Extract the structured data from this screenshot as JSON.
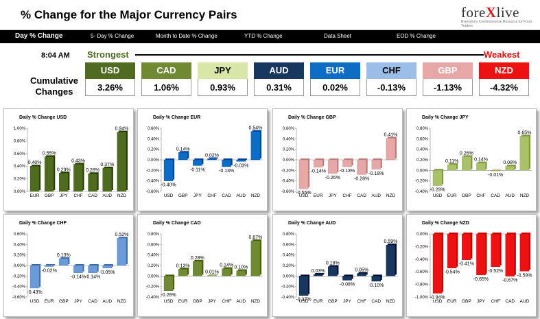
{
  "header": {
    "title": "% Change for the Major Currency Pairs",
    "logo": {
      "pre": "fore",
      "x": "X",
      "post": "live",
      "tagline": "Everyone's Commonsense Resource for Forex Traders"
    }
  },
  "nav": [
    {
      "label": "Day % Change",
      "active": true
    },
    {
      "label": "5- Day % Change",
      "active": false
    },
    {
      "label": "Month to Date % Change",
      "active": false
    },
    {
      "label": "YTD % Change",
      "active": false
    },
    {
      "label": "Data Sheet",
      "active": false
    },
    {
      "label": "EOD % Change",
      "active": false
    }
  ],
  "summary": {
    "time": "8:04 AM",
    "strongest": "Strongest",
    "weakest": "Weakest",
    "cumulative_label": "Cumulative Changes",
    "currencies": [
      {
        "code": "USD",
        "value": "3.26%",
        "color": "#4e6b1f",
        "text": "#ffffff"
      },
      {
        "code": "CAD",
        "value": "1.06%",
        "color": "#708a34",
        "text": "#ffffff"
      },
      {
        "code": "JPY",
        "value": "0.93%",
        "color": "#d8e6a8",
        "text": "#000000"
      },
      {
        "code": "AUD",
        "value": "0.31%",
        "color": "#17375e",
        "text": "#ffffff"
      },
      {
        "code": "EUR",
        "value": "0.02%",
        "color": "#0d6cc4",
        "text": "#ffffff"
      },
      {
        "code": "CHF",
        "value": "-0.13%",
        "color": "#9bbee8",
        "text": "#000000"
      },
      {
        "code": "GBP",
        "value": "-1.13%",
        "color": "#e6a7a7",
        "text": "#ffffff"
      },
      {
        "code": "NZD",
        "value": "-4.32%",
        "color": "#ee1111",
        "text": "#ffffff"
      }
    ]
  },
  "chart_data": [
    {
      "type": "bar",
      "title": "Daily % Change USD",
      "color": "#4e6b1f",
      "categories": [
        "EUR",
        "GBP",
        "JPY",
        "CHF",
        "CAD",
        "AUD",
        "NZD"
      ],
      "values": [
        0.4,
        0.55,
        0.29,
        0.43,
        0.28,
        0.37,
        0.94
      ],
      "labels": [
        "0.40%",
        "0.55%",
        "0.29%",
        "0.43%",
        "0.28%",
        "0.37%",
        "0.94%"
      ],
      "ylim": [
        0,
        1.0
      ],
      "ticks": [
        0,
        0.2,
        0.4,
        0.6,
        0.8,
        1.0
      ],
      "tick_labels": [
        "0.00%",
        "0.20%",
        "0.40%",
        "0.60%",
        "0.80%",
        "1.00%"
      ]
    },
    {
      "type": "bar",
      "title": "Daily % Change EUR",
      "color": "#0d6cc4",
      "categories": [
        "USD",
        "GBP",
        "JPY",
        "CHF",
        "CAD",
        "AUD",
        "NZD"
      ],
      "values": [
        -0.4,
        0.14,
        -0.11,
        0.02,
        -0.13,
        -0.03,
        0.54
      ],
      "labels": [
        "-0.40%",
        "0.14%",
        "-0.11%",
        "0.02%",
        "-0.13%",
        "-0.03%",
        "0.54%"
      ],
      "ylim": [
        -0.6,
        0.6
      ],
      "ticks": [
        -0.6,
        -0.4,
        -0.2,
        0,
        0.2,
        0.4,
        0.6
      ],
      "tick_labels": [
        "-0.60%",
        "-0.40%",
        "-0.20%",
        "0.00%",
        "0.20%",
        "0.40%",
        "0.60%"
      ]
    },
    {
      "type": "bar",
      "title": "Daily % Change GBP",
      "color": "#e6a7a7",
      "categories": [
        "USD",
        "EUR",
        "JPY",
        "CHF",
        "CAD",
        "AUD",
        "NZD"
      ],
      "values": [
        -0.55,
        -0.14,
        -0.26,
        -0.13,
        -0.28,
        -0.18,
        0.41
      ],
      "labels": [
        "-0.55%",
        "-0.14%",
        "-0.26%",
        "-0.13%",
        "-0.28%",
        "-0.18%",
        "0.41%"
      ],
      "ylim": [
        -0.6,
        0.6
      ],
      "ticks": [
        -0.6,
        -0.4,
        -0.2,
        0,
        0.2,
        0.4,
        0.6
      ],
      "tick_labels": [
        "-0.60%",
        "-0.40%",
        "-0.20%",
        "0.00%",
        "0.20%",
        "0.40%",
        "0.60%"
      ]
    },
    {
      "type": "bar",
      "title": "Daily % Change JPY",
      "color": "#a9c26a",
      "categories": [
        "USD",
        "EUR",
        "GBP",
        "CHF",
        "CAD",
        "AUD",
        "NZD"
      ],
      "values": [
        -0.29,
        0.11,
        0.26,
        0.14,
        -0.01,
        0.08,
        0.65
      ],
      "labels": [
        "-0.29%",
        "0.11%",
        "0.26%",
        "0.14%",
        "-0.01%",
        "0.08%",
        "0.65%"
      ],
      "ylim": [
        -0.4,
        0.8
      ],
      "ticks": [
        -0.4,
        -0.2,
        0,
        0.2,
        0.4,
        0.6,
        0.8
      ],
      "tick_labels": [
        "-0.40%",
        "-0.20%",
        "0.00%",
        "0.20%",
        "0.40%",
        "0.60%",
        "0.80%"
      ]
    },
    {
      "type": "bar",
      "title": "Daily % Change CHF",
      "color": "#6a9bd8",
      "categories": [
        "USD",
        "EUR",
        "GBP",
        "JPY",
        "CAD",
        "AUD",
        "NZD"
      ],
      "values": [
        -0.43,
        -0.02,
        0.13,
        -0.14,
        -0.14,
        -0.05,
        0.52
      ],
      "labels": [
        "-0.43%",
        "-0.02%",
        "0.13%",
        "-0.14%",
        "-0.14%",
        "-0.05%",
        "0.52%"
      ],
      "ylim": [
        -0.6,
        0.6
      ],
      "ticks": [
        -0.6,
        -0.4,
        -0.2,
        0,
        0.2,
        0.4,
        0.6
      ],
      "tick_labels": [
        "-0.60%",
        "-0.40%",
        "-0.20%",
        "0.00%",
        "0.20%",
        "0.40%",
        "0.60%"
      ]
    },
    {
      "type": "bar",
      "title": "Daily % Change CAD",
      "color": "#708a34",
      "categories": [
        "USD",
        "EUR",
        "GBP",
        "JPY",
        "CHF",
        "AUD",
        "NZD"
      ],
      "values": [
        -0.28,
        0.13,
        0.28,
        0.01,
        0.14,
        0.1,
        0.67
      ],
      "labels": [
        "-0.28%",
        "0.13%",
        "0.28%",
        "0.01%",
        "0.14%",
        "0.10%",
        "0.67%"
      ],
      "ylim": [
        -0.4,
        0.8
      ],
      "ticks": [
        -0.4,
        -0.2,
        0,
        0.2,
        0.4,
        0.6,
        0.8
      ],
      "tick_labels": [
        "-0.40%",
        "-0.20%",
        "0.00%",
        "0.20%",
        "0.40%",
        "0.60%",
        "0.80%"
      ]
    },
    {
      "type": "bar",
      "title": "Daily % Change AUD",
      "color": "#17375e",
      "categories": [
        "USD",
        "EUR",
        "GBP",
        "JPY",
        "CHF",
        "CAD",
        "NZD"
      ],
      "values": [
        -0.37,
        0.03,
        0.18,
        -0.08,
        0.05,
        -0.1,
        0.59
      ],
      "labels": [
        "-0.37%",
        "0.03%",
        "0.18%",
        "-0.08%",
        "0.05%",
        "-0.10%",
        "0.59%"
      ],
      "ylim": [
        -0.4,
        0.8
      ],
      "ticks": [
        -0.4,
        -0.2,
        0,
        0.2,
        0.4,
        0.6,
        0.8
      ],
      "tick_labels": [
        "-0.40%",
        "-0.20%",
        "0.00%",
        "0.20%",
        "0.40%",
        "0.60%",
        "0.80%"
      ]
    },
    {
      "type": "bar",
      "title": "Daily % Change NZD",
      "color": "#ee1111",
      "categories": [
        "USD",
        "EUR",
        "GBP",
        "JPY",
        "CHF",
        "CAD",
        "AUD"
      ],
      "values": [
        -0.94,
        -0.54,
        -0.41,
        -0.65,
        -0.52,
        -0.67,
        -0.59
      ],
      "labels": [
        "-0.94%",
        "-0.54%",
        "-0.41%",
        "-0.65%",
        "-0.52%",
        "-0.67%",
        "-0.59%"
      ],
      "ylim": [
        -1.0,
        0
      ],
      "ticks": [
        -1.0,
        -0.8,
        -0.6,
        -0.4,
        -0.2,
        0
      ],
      "tick_labels": [
        "-1.00%",
        "-0.80%",
        "-0.60%",
        "-0.40%",
        "-0.20%",
        "0.00%"
      ]
    }
  ]
}
